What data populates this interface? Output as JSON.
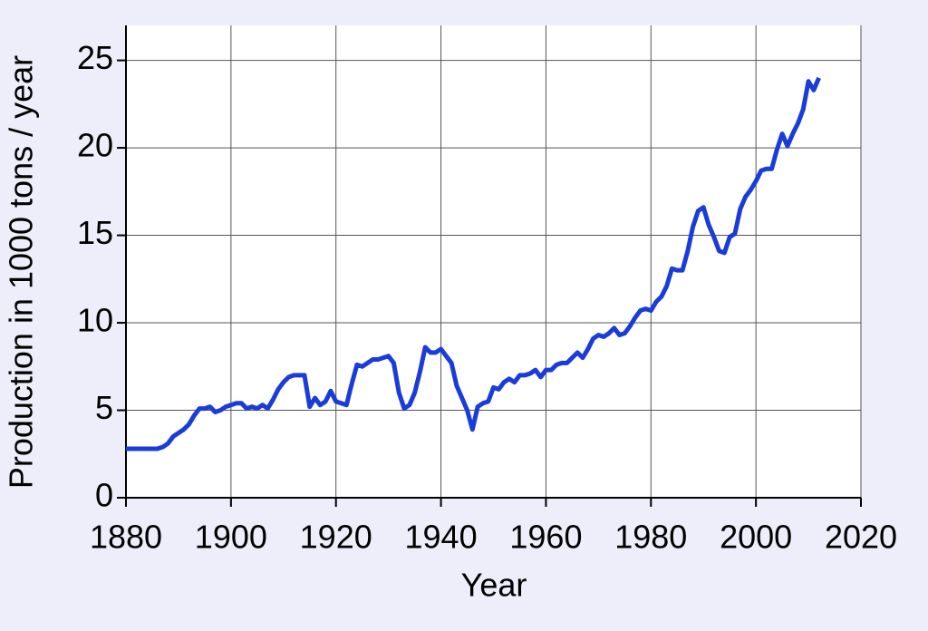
{
  "chart_data": {
    "type": "line",
    "xlabel": "Year",
    "ylabel": "Production in 1000 tons / year",
    "x": [
      1880,
      1881,
      1882,
      1883,
      1884,
      1885,
      1886,
      1887,
      1888,
      1889,
      1890,
      1891,
      1892,
      1893,
      1894,
      1895,
      1896,
      1897,
      1898,
      1899,
      1900,
      1901,
      1902,
      1903,
      1904,
      1905,
      1906,
      1907,
      1908,
      1909,
      1910,
      1911,
      1912,
      1913,
      1914,
      1915,
      1916,
      1917,
      1918,
      1919,
      1920,
      1921,
      1922,
      1923,
      1924,
      1925,
      1926,
      1927,
      1928,
      1929,
      1930,
      1931,
      1932,
      1933,
      1934,
      1935,
      1936,
      1937,
      1938,
      1939,
      1940,
      1941,
      1942,
      1943,
      1944,
      1945,
      1946,
      1947,
      1948,
      1949,
      1950,
      1951,
      1952,
      1953,
      1954,
      1955,
      1956,
      1957,
      1958,
      1959,
      1960,
      1961,
      1962,
      1963,
      1964,
      1965,
      1966,
      1967,
      1968,
      1969,
      1970,
      1971,
      1972,
      1973,
      1974,
      1975,
      1976,
      1977,
      1978,
      1979,
      1980,
      1981,
      1982,
      1983,
      1984,
      1985,
      1986,
      1987,
      1988,
      1989,
      1990,
      1991,
      1992,
      1993,
      1994,
      1995,
      1996,
      1997,
      1998,
      1999,
      2000,
      2001,
      2002,
      2003,
      2004,
      2005,
      2006,
      2007,
      2008,
      2009,
      2010,
      2011,
      2012
    ],
    "series": [
      {
        "color": "#1a3cd8",
        "values": [
          2.8,
          2.8,
          2.8,
          2.8,
          2.8,
          2.8,
          2.8,
          2.9,
          3.1,
          3.5,
          3.7,
          3.9,
          4.2,
          4.7,
          5.1,
          5.1,
          5.2,
          4.9,
          5.0,
          5.2,
          5.3,
          5.4,
          5.4,
          5.1,
          5.2,
          5.1,
          5.3,
          5.1,
          5.6,
          6.2,
          6.6,
          6.9,
          7.0,
          7.0,
          7.0,
          5.2,
          5.7,
          5.3,
          5.5,
          6.1,
          5.5,
          5.4,
          5.3,
          6.5,
          7.6,
          7.5,
          7.7,
          7.9,
          7.9,
          8.0,
          8.1,
          7.7,
          6.0,
          5.1,
          5.3,
          6.0,
          7.2,
          8.6,
          8.3,
          8.3,
          8.5,
          8.1,
          7.7,
          6.4,
          5.7,
          5.0,
          3.9,
          5.2,
          5.4,
          5.5,
          6.3,
          6.2,
          6.6,
          6.8,
          6.6,
          7.0,
          7.0,
          7.1,
          7.3,
          6.9,
          7.3,
          7.3,
          7.6,
          7.7,
          7.7,
          8.0,
          8.3,
          8.0,
          8.5,
          9.1,
          9.3,
          9.2,
          9.4,
          9.7,
          9.3,
          9.4,
          9.8,
          10.3,
          10.7,
          10.8,
          10.7,
          11.2,
          11.5,
          12.1,
          13.1,
          13.0,
          13.0,
          14.1,
          15.5,
          16.4,
          16.6,
          15.6,
          14.9,
          14.1,
          14.0,
          14.9,
          15.1,
          16.5,
          17.2,
          17.6,
          18.1,
          18.7,
          18.8,
          18.8,
          19.9,
          20.8,
          20.1,
          20.8,
          21.4,
          22.2,
          23.8,
          23.3,
          24.0
        ]
      }
    ],
    "xlim": [
      1880,
      2020
    ],
    "xticks": [
      1880,
      1900,
      1920,
      1940,
      1960,
      1980,
      2000,
      2020
    ],
    "ylim": [
      0,
      27
    ],
    "yticks": [
      0,
      5,
      10,
      15,
      20,
      25
    ],
    "grid": true
  }
}
